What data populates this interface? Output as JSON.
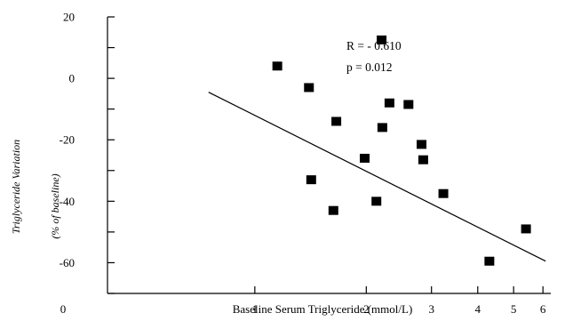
{
  "chart_data": {
    "type": "scatter",
    "title": "",
    "xlabel": "Baseline Serum Triglyceride (mmol/L)",
    "ylabel_line1": "Triglyceride Variation",
    "ylabel_line2": "(% of baseline)",
    "x_origin_label": "0",
    "x_ticks": [
      {
        "label": "1",
        "value": 1
      },
      {
        "label": "2",
        "value": 2
      },
      {
        "label": "3",
        "value": 3
      },
      {
        "label": "4",
        "value": 4
      },
      {
        "label": "5",
        "value": 5
      },
      {
        "label": "6",
        "value": 6
      }
    ],
    "y_ticks": [
      {
        "label": "20",
        "value": 20
      },
      {
        "label": "0",
        "value": 0
      },
      {
        "label": "-20",
        "value": -20
      },
      {
        "label": "-40",
        "value": -40
      },
      {
        "label": "-60",
        "value": -60
      }
    ],
    "xlim": [
      0.4,
      6.3
    ],
    "ylim": [
      -70,
      20
    ],
    "points": [
      {
        "x": 1.15,
        "y": 4
      },
      {
        "x": 1.4,
        "y": -3
      },
      {
        "x": 1.42,
        "y": -33
      },
      {
        "x": 1.63,
        "y": -43
      },
      {
        "x": 1.66,
        "y": -14
      },
      {
        "x": 1.98,
        "y": -26
      },
      {
        "x": 2.13,
        "y": -40
      },
      {
        "x": 2.2,
        "y": 12.5
      },
      {
        "x": 2.21,
        "y": -16
      },
      {
        "x": 2.31,
        "y": -8
      },
      {
        "x": 2.6,
        "y": -8.5
      },
      {
        "x": 2.82,
        "y": -21.5
      },
      {
        "x": 2.85,
        "y": -26.5
      },
      {
        "x": 3.23,
        "y": -37.5
      },
      {
        "x": 4.3,
        "y": -59.5
      },
      {
        "x": 5.4,
        "y": -49
      }
    ],
    "regression_line": {
      "x": [
        0.75,
        6.1
      ],
      "y": [
        -4.5,
        -59.5
      ]
    },
    "annotations": [
      "R = - 0.610",
      "p = 0.012"
    ],
    "grid": false,
    "legend": false
  }
}
